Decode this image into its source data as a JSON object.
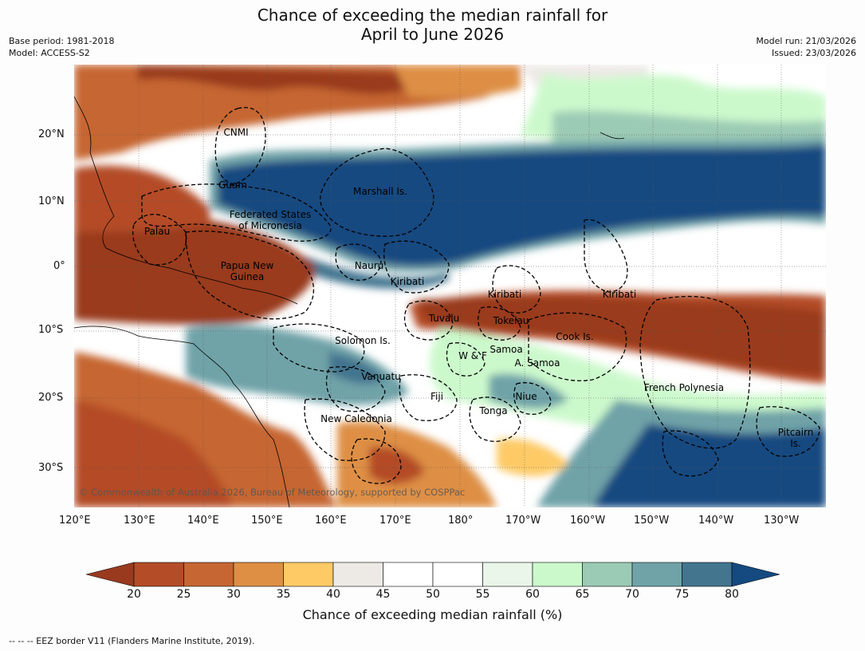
{
  "title_line1": "Chance of exceeding the median rainfall for",
  "title_line2": "April to June 2026",
  "base_period": "Base period: 1981-2018",
  "model": "Model: ACCESS-S2",
  "model_run": "Model run: 21/03/2026",
  "issued": "Issued: 23/03/2026",
  "x_axis_labels": [
    "120°E",
    "130°E",
    "140°E",
    "150°E",
    "160°E",
    "170°E",
    "180°",
    "170°W",
    "160°W",
    "150°W",
    "140°W",
    "130°W"
  ],
  "y_axis_labels": [
    "20°N",
    "10°N",
    "0°",
    "10°S",
    "20°S",
    "30°S"
  ],
  "places": {
    "cnmi": "CNMI",
    "guam": "Guam",
    "marshall": "Marshall Is.",
    "fsm1": "Federated States",
    "fsm2": "of Micronesia",
    "palau": "Palau",
    "png1": "Papua New",
    "png2": "Guinea",
    "nauru": "Nauru",
    "kiribati_w": "Kiribati",
    "kiribati_c": "Kiribati",
    "kiribati_e": "Kiribati",
    "tuvalu": "Tuvalu",
    "tokelau": "Tokelau",
    "cook": "Cook Is.",
    "solomon": "Solomon Is.",
    "wf": "W & F",
    "samoa": "Samoa",
    "asamoa": "A. Samoa",
    "vanuatu": "Vanuatu",
    "fiji": "Fiji",
    "niue": "Niue",
    "tonga": "Tonga",
    "frenchpoly": "French Polynesia",
    "newcal": "New Caledonia",
    "pitcairn1": "Pitcairn",
    "pitcairn2": "Is."
  },
  "copyright": "© Commonwealth of Australia 2026, Bureau of Meteorology, supported by COSPPac",
  "colorbar": {
    "ticks": [
      "20",
      "25",
      "30",
      "35",
      "40",
      "45",
      "50",
      "55",
      "60",
      "65",
      "70",
      "75",
      "80"
    ],
    "colors": [
      "#993a1f",
      "#b44c27",
      "#c66632",
      "#de8f44",
      "#fdca66",
      "#edeae6",
      "#ffffff",
      "#ffffff",
      "#e9f6e9",
      "#ccf9cc",
      "#9ccbb5",
      "#6fa3a8",
      "#43758f",
      "#144a80"
    ],
    "label": "Chance of exceeding median rainfall (%)"
  },
  "footnote": "--  --  -- EEZ border V11 (Flanders Marine Institute, 2019)."
}
